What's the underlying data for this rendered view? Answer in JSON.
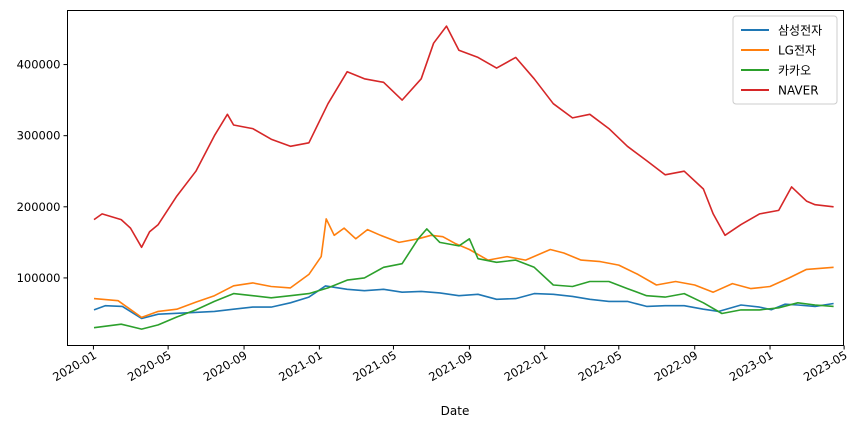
{
  "chart_data": {
    "type": "line",
    "title": "",
    "xlabel": "Date",
    "ylabel": "",
    "xlim": [
      "2019-11-20",
      "2023-04-30"
    ],
    "ylim": [
      5000,
      476000
    ],
    "x_ticks": [
      "2020-01",
      "2020-05",
      "2020-09",
      "2021-01",
      "2021-05",
      "2021-09",
      "2022-01",
      "2022-05",
      "2022-09",
      "2023-01",
      "2023-05"
    ],
    "y_ticks": [
      100000,
      200000,
      300000,
      400000
    ],
    "y_tick_labels": [
      "100000",
      "200000",
      "300000",
      "400000"
    ],
    "grid": false,
    "legend_position": "top-right",
    "series": [
      {
        "name": "삼성전자",
        "color": "#1f77b4",
        "points": [
          [
            "2020-01-02",
            55000
          ],
          [
            "2020-01-20",
            61000
          ],
          [
            "2020-02-17",
            60000
          ],
          [
            "2020-03-19",
            42900
          ],
          [
            "2020-04-15",
            49000
          ],
          [
            "2020-06-01",
            51000
          ],
          [
            "2020-07-15",
            53000
          ],
          [
            "2020-08-15",
            56000
          ],
          [
            "2020-09-15",
            59000
          ],
          [
            "2020-10-15",
            59000
          ],
          [
            "2020-11-15",
            65000
          ],
          [
            "2020-12-15",
            73000
          ],
          [
            "2021-01-11",
            88800
          ],
          [
            "2021-02-15",
            84000
          ],
          [
            "2021-03-15",
            82000
          ],
          [
            "2021-04-15",
            84000
          ],
          [
            "2021-05-15",
            80000
          ],
          [
            "2021-06-15",
            81000
          ],
          [
            "2021-07-15",
            79000
          ],
          [
            "2021-08-15",
            75000
          ],
          [
            "2021-09-15",
            77000
          ],
          [
            "2021-10-15",
            70000
          ],
          [
            "2021-11-15",
            71000
          ],
          [
            "2021-12-15",
            78000
          ],
          [
            "2022-01-15",
            77000
          ],
          [
            "2022-02-15",
            74000
          ],
          [
            "2022-03-15",
            70000
          ],
          [
            "2022-04-15",
            67000
          ],
          [
            "2022-05-15",
            67000
          ],
          [
            "2022-06-15",
            60000
          ],
          [
            "2022-07-15",
            61000
          ],
          [
            "2022-08-15",
            61000
          ],
          [
            "2022-09-15",
            56000
          ],
          [
            "2022-10-10",
            53000
          ],
          [
            "2022-11-15",
            62000
          ],
          [
            "2022-12-15",
            59000
          ],
          [
            "2023-01-03",
            55400
          ],
          [
            "2023-01-25",
            63000
          ],
          [
            "2023-02-15",
            62000
          ],
          [
            "2023-03-15",
            60000
          ],
          [
            "2023-04-14",
            64000
          ]
        ]
      },
      {
        "name": "LG전자",
        "color": "#ff7f0e",
        "points": [
          [
            "2020-01-02",
            71000
          ],
          [
            "2020-02-10",
            68000
          ],
          [
            "2020-03-19",
            44500
          ],
          [
            "2020-04-15",
            53000
          ],
          [
            "2020-05-15",
            56000
          ],
          [
            "2020-06-15",
            66000
          ],
          [
            "2020-07-15",
            75000
          ],
          [
            "2020-08-15",
            89000
          ],
          [
            "2020-09-15",
            93000
          ],
          [
            "2020-10-15",
            88000
          ],
          [
            "2020-11-15",
            86000
          ],
          [
            "2020-12-15",
            105000
          ],
          [
            "2021-01-04",
            130000
          ],
          [
            "2021-01-12",
            183000
          ],
          [
            "2021-01-25",
            160000
          ],
          [
            "2021-02-10",
            170000
          ],
          [
            "2021-03-01",
            155000
          ],
          [
            "2021-03-20",
            168000
          ],
          [
            "2021-04-10",
            160000
          ],
          [
            "2021-05-10",
            150000
          ],
          [
            "2021-06-10",
            155000
          ],
          [
            "2021-07-01",
            160000
          ],
          [
            "2021-07-20",
            158000
          ],
          [
            "2021-08-10",
            148000
          ],
          [
            "2021-09-01",
            140000
          ],
          [
            "2021-10-01",
            125000
          ],
          [
            "2021-11-01",
            130000
          ],
          [
            "2021-12-01",
            125000
          ],
          [
            "2022-01-10",
            140000
          ],
          [
            "2022-02-01",
            135000
          ],
          [
            "2022-03-01",
            125000
          ],
          [
            "2022-04-01",
            123000
          ],
          [
            "2022-05-01",
            118000
          ],
          [
            "2022-06-01",
            105000
          ],
          [
            "2022-07-01",
            90000
          ],
          [
            "2022-08-01",
            95000
          ],
          [
            "2022-09-01",
            90000
          ],
          [
            "2022-10-01",
            80000
          ],
          [
            "2022-11-01",
            92000
          ],
          [
            "2022-12-01",
            85000
          ],
          [
            "2023-01-01",
            88000
          ],
          [
            "2023-02-01",
            100000
          ],
          [
            "2023-03-01",
            112000
          ],
          [
            "2023-04-14",
            115000
          ]
        ]
      },
      {
        "name": "카카오",
        "color": "#2ca02c",
        "points": [
          [
            "2020-01-02",
            30000
          ],
          [
            "2020-02-15",
            35000
          ],
          [
            "2020-03-19",
            28000
          ],
          [
            "2020-04-15",
            34000
          ],
          [
            "2020-05-15",
            45000
          ],
          [
            "2020-06-15",
            55000
          ],
          [
            "2020-07-15",
            67000
          ],
          [
            "2020-08-15",
            78000
          ],
          [
            "2020-09-15",
            75000
          ],
          [
            "2020-10-15",
            72000
          ],
          [
            "2020-11-15",
            75000
          ],
          [
            "2020-12-15",
            78000
          ],
          [
            "2021-01-15",
            86000
          ],
          [
            "2021-02-15",
            97000
          ],
          [
            "2021-03-15",
            100000
          ],
          [
            "2021-04-15",
            115000
          ],
          [
            "2021-05-15",
            120000
          ],
          [
            "2021-06-10",
            155000
          ],
          [
            "2021-06-24",
            169000
          ],
          [
            "2021-07-15",
            150000
          ],
          [
            "2021-08-15",
            145000
          ],
          [
            "2021-09-01",
            155000
          ],
          [
            "2021-09-15",
            127000
          ],
          [
            "2021-10-15",
            122000
          ],
          [
            "2021-11-15",
            125000
          ],
          [
            "2021-12-15",
            115000
          ],
          [
            "2022-01-15",
            90000
          ],
          [
            "2022-02-15",
            88000
          ],
          [
            "2022-03-15",
            95000
          ],
          [
            "2022-04-15",
            95000
          ],
          [
            "2022-05-15",
            85000
          ],
          [
            "2022-06-15",
            75000
          ],
          [
            "2022-07-15",
            73000
          ],
          [
            "2022-08-15",
            78000
          ],
          [
            "2022-09-15",
            65000
          ],
          [
            "2022-10-15",
            50000
          ],
          [
            "2022-11-15",
            55000
          ],
          [
            "2022-12-15",
            55000
          ],
          [
            "2023-01-15",
            58000
          ],
          [
            "2023-02-15",
            65000
          ],
          [
            "2023-03-15",
            62000
          ],
          [
            "2023-04-14",
            60000
          ]
        ]
      },
      {
        "name": "NAVER",
        "color": "#d62728",
        "points": [
          [
            "2020-01-02",
            182000
          ],
          [
            "2020-01-15",
            190000
          ],
          [
            "2020-02-15",
            182000
          ],
          [
            "2020-03-01",
            170000
          ],
          [
            "2020-03-19",
            143000
          ],
          [
            "2020-04-01",
            165000
          ],
          [
            "2020-04-15",
            175000
          ],
          [
            "2020-05-15",
            215000
          ],
          [
            "2020-06-15",
            250000
          ],
          [
            "2020-07-15",
            300000
          ],
          [
            "2020-08-05",
            330000
          ],
          [
            "2020-08-15",
            315000
          ],
          [
            "2020-09-15",
            310000
          ],
          [
            "2020-10-15",
            295000
          ],
          [
            "2020-11-15",
            285000
          ],
          [
            "2020-12-15",
            290000
          ],
          [
            "2021-01-15",
            345000
          ],
          [
            "2021-02-15",
            390000
          ],
          [
            "2021-03-15",
            380000
          ],
          [
            "2021-04-15",
            375000
          ],
          [
            "2021-05-15",
            350000
          ],
          [
            "2021-06-15",
            380000
          ],
          [
            "2021-07-05",
            430000
          ],
          [
            "2021-07-26",
            454000
          ],
          [
            "2021-08-15",
            420000
          ],
          [
            "2021-09-15",
            410000
          ],
          [
            "2021-10-15",
            395000
          ],
          [
            "2021-11-15",
            410000
          ],
          [
            "2021-12-15",
            380000
          ],
          [
            "2022-01-15",
            345000
          ],
          [
            "2022-02-15",
            325000
          ],
          [
            "2022-03-15",
            330000
          ],
          [
            "2022-04-15",
            310000
          ],
          [
            "2022-05-15",
            285000
          ],
          [
            "2022-06-15",
            265000
          ],
          [
            "2022-07-15",
            245000
          ],
          [
            "2022-08-15",
            250000
          ],
          [
            "2022-09-15",
            225000
          ],
          [
            "2022-10-01",
            190000
          ],
          [
            "2022-10-20",
            160000
          ],
          [
            "2022-11-15",
            175000
          ],
          [
            "2022-12-15",
            190000
          ],
          [
            "2023-01-15",
            195000
          ],
          [
            "2023-02-05",
            228000
          ],
          [
            "2023-03-01",
            208000
          ],
          [
            "2023-03-15",
            203000
          ],
          [
            "2023-04-14",
            200000
          ]
        ]
      }
    ]
  }
}
